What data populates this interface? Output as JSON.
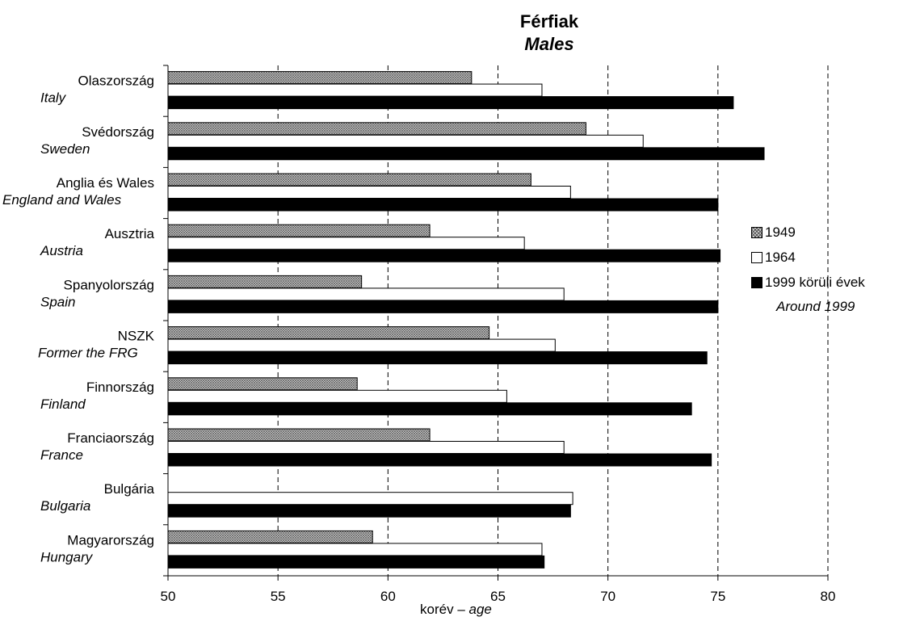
{
  "chart_data": {
    "type": "bar",
    "orientation": "horizontal",
    "title": "Férfiak",
    "subtitle": "Males",
    "xlabel_hu": "korév",
    "xlabel_sep": "–",
    "xlabel_en": "age",
    "xlim": [
      50,
      80
    ],
    "xticks": [
      "50",
      "55",
      "60",
      "65",
      "70",
      "75",
      "80"
    ],
    "grid": "vertical dashed",
    "legend_position": "right",
    "legend_note": "Around 1999",
    "categories": [
      {
        "hu": "Olaszország",
        "en": "Italy"
      },
      {
        "hu": "Svédország",
        "en": "Sweden"
      },
      {
        "hu": "Anglia és Wales",
        "en": "England and Wales"
      },
      {
        "hu": "Ausztria",
        "en": "Austria"
      },
      {
        "hu": "Spanyolország",
        "en": "Spain"
      },
      {
        "hu": "NSZK",
        "en": "Former the FRG"
      },
      {
        "hu": "Finnország",
        "en": "Finland"
      },
      {
        "hu": "Franciaország",
        "en": "France"
      },
      {
        "hu": "Bulgária",
        "en": "Bulgaria"
      },
      {
        "hu": "Magyarország",
        "en": "Hungary"
      }
    ],
    "series": [
      {
        "name": "1949",
        "color": "#d9d9d9",
        "pattern": "crosshatch",
        "values": [
          63.8,
          69.0,
          66.5,
          61.9,
          58.8,
          64.6,
          58.6,
          61.9,
          null,
          59.3
        ]
      },
      {
        "name": "1964",
        "color": "#ffffff",
        "values": [
          67.0,
          71.6,
          68.3,
          66.2,
          68.0,
          67.6,
          65.4,
          68.0,
          68.4,
          67.0
        ]
      },
      {
        "name": "1999 körüli évek",
        "color": "#000000",
        "values": [
          75.7,
          77.1,
          75.0,
          75.1,
          75.0,
          74.5,
          73.8,
          74.7,
          68.3,
          67.1
        ]
      }
    ]
  }
}
